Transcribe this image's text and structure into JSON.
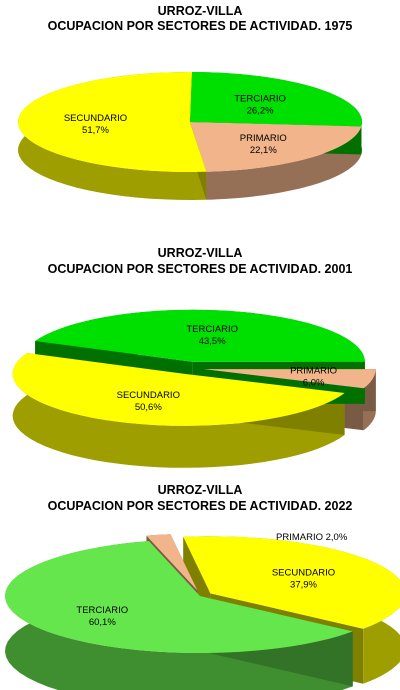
{
  "chart_data": [
    {
      "type": "pie",
      "title": "URROZ-VILLA",
      "subtitle": "OCUPACION POR SECTORES DE ACTIVIDAD. 1975",
      "slices": [
        {
          "label": "SECUNDARIO",
          "value": 51.7,
          "value_text": "51,7%",
          "color": "#ffff00"
        },
        {
          "label": "TERCIARIO",
          "value": 26.2,
          "value_text": "26,2%",
          "color": "#00e000"
        },
        {
          "label": "PRIMARIO",
          "value": 22.1,
          "value_text": "22,1%",
          "color": "#f2b48a"
        }
      ]
    },
    {
      "type": "pie",
      "title": "URROZ-VILLA",
      "subtitle": "OCUPACION POR SECTORES DE ACTIVIDAD. 2001",
      "slices": [
        {
          "label": "SECUNDARIO",
          "value": 50.6,
          "value_text": "50,6%",
          "color": "#ffff00"
        },
        {
          "label": "TERCIARIO",
          "value": 43.5,
          "value_text": "43,5%",
          "color": "#00e000"
        },
        {
          "label": "PRIMARIO",
          "value": 6.0,
          "value_text": "6,0%",
          "color": "#f2b48a"
        }
      ]
    },
    {
      "type": "pie",
      "title": "URROZ-VILLA",
      "subtitle": "OCUPACION POR SECTORES DE ACTIVIDAD. 2022",
      "slices": [
        {
          "label": "TERCIARIO",
          "value": 60.1,
          "value_text": "60,1%",
          "color": "#66e64d"
        },
        {
          "label": "SECUNDARIO",
          "value": 37.9,
          "value_text": "37,9%",
          "color": "#ffff00"
        },
        {
          "label": "PRIMARIO",
          "value": 2.0,
          "value_text": "2,0%",
          "color": "#f2b48a"
        }
      ]
    }
  ]
}
